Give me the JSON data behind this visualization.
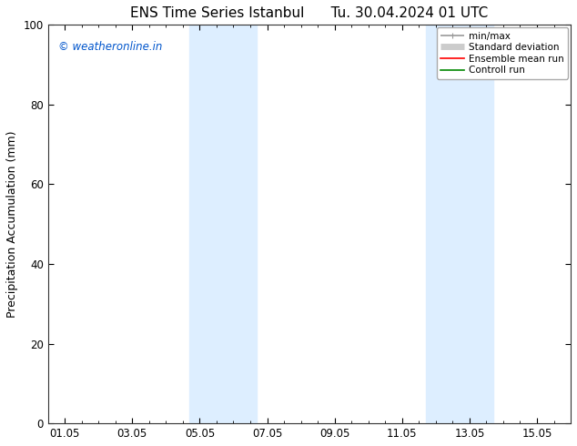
{
  "title_left": "ENS Time Series Istanbul",
  "title_right": "Tu. 30.04.2024 01 UTC",
  "ylabel": "Precipitation Accumulation (mm)",
  "ylim": [
    0,
    100
  ],
  "yticks": [
    0,
    20,
    40,
    60,
    80,
    100
  ],
  "xtick_labels": [
    "01.05",
    "03.05",
    "05.05",
    "07.05",
    "09.05",
    "11.05",
    "13.05",
    "15.05"
  ],
  "xtick_positions": [
    0,
    2,
    4,
    6,
    8,
    10,
    12,
    14
  ],
  "xmin": -0.5,
  "xmax": 15.0,
  "shaded_bands": [
    {
      "x_start": 3.7,
      "x_end": 5.7
    },
    {
      "x_start": 10.7,
      "x_end": 12.7
    }
  ],
  "band_color": "#ddeeff",
  "watermark_text": "© weatheronline.in",
  "watermark_color": "#0055cc",
  "legend_items": [
    {
      "label": "min/max",
      "color": "#999999",
      "lw": 1.2
    },
    {
      "label": "Standard deviation",
      "color": "#cccccc",
      "lw": 5
    },
    {
      "label": "Ensemble mean run",
      "color": "#ff0000",
      "lw": 1.2
    },
    {
      "label": "Controll run",
      "color": "#008800",
      "lw": 1.2
    }
  ],
  "bg_color": "#ffffff",
  "title_fontsize": 11,
  "axis_label_fontsize": 9,
  "tick_fontsize": 8.5,
  "legend_fontsize": 7.5,
  "watermark_fontsize": 8.5
}
